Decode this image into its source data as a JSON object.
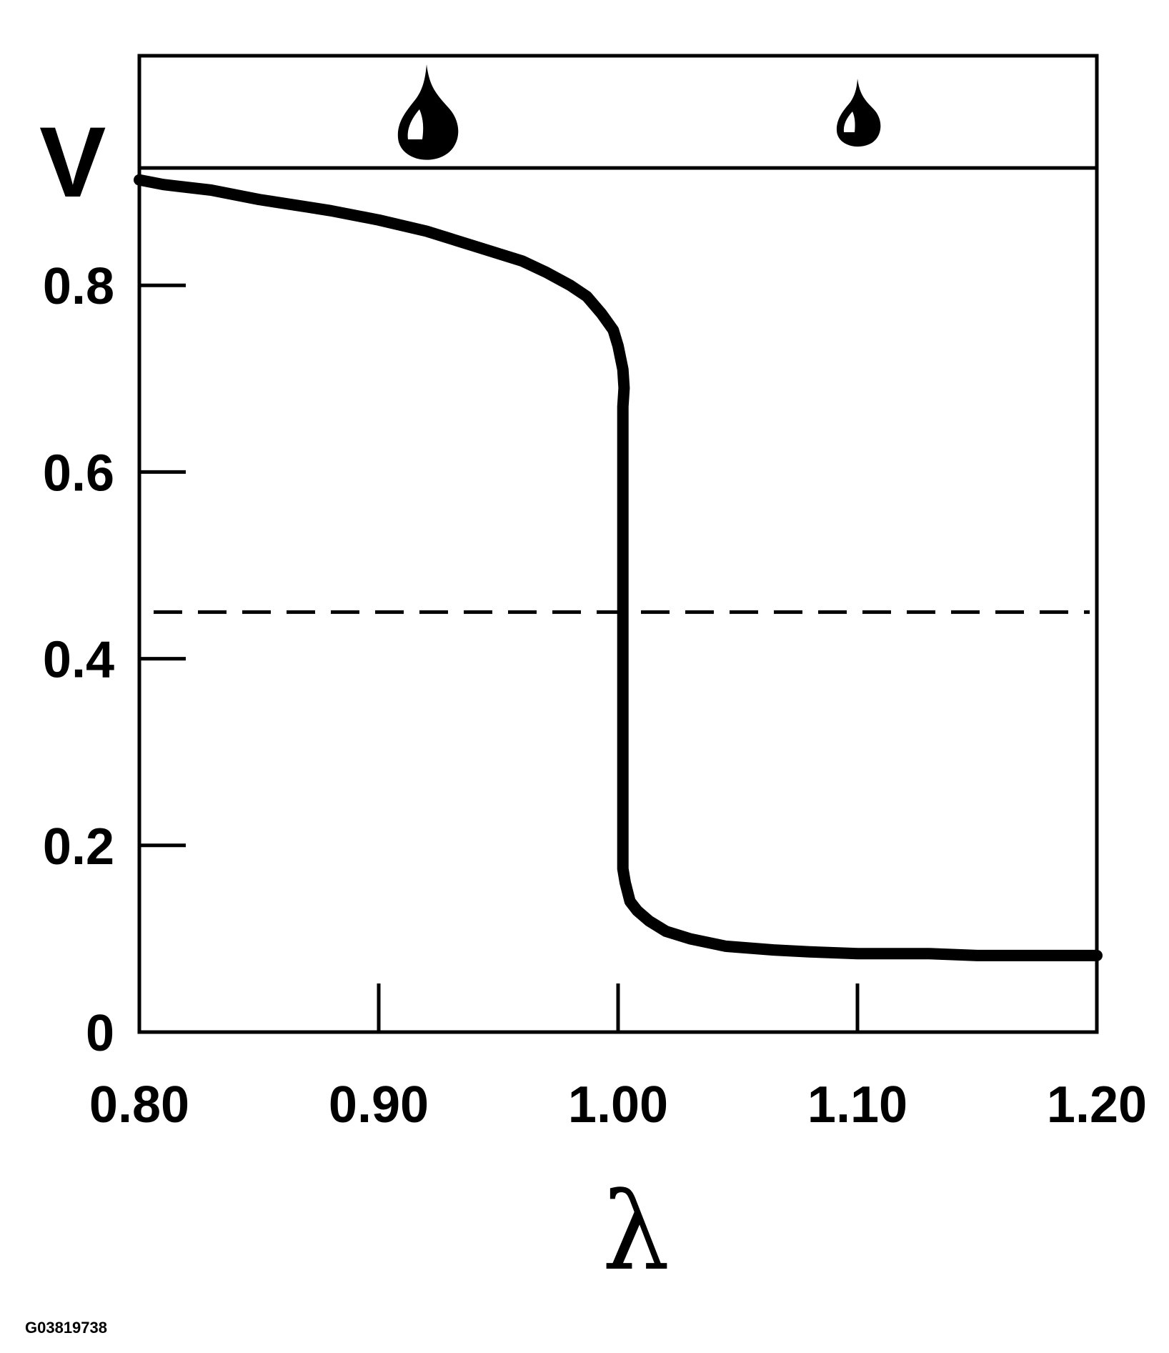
{
  "chart_data": {
    "type": "line",
    "title": "",
    "xlabel": "λ",
    "ylabel": "V",
    "xlim": [
      0.8,
      1.2
    ],
    "ylim": [
      0,
      0.925
    ],
    "x_ticks": [
      0.8,
      0.9,
      1.0,
      1.1,
      1.2
    ],
    "x_tick_labels": [
      "0.80",
      "0.90",
      "1.00",
      "1.10",
      "1.20"
    ],
    "y_ticks": [
      0,
      0.2,
      0.4,
      0.6,
      0.8
    ],
    "y_tick_labels": [
      "0",
      "0.2",
      "0.4",
      "0.6",
      "0.8"
    ],
    "grid": false,
    "series": [
      {
        "points": [
          [
            0.8,
            0.913
          ],
          [
            0.81,
            0.908
          ],
          [
            0.83,
            0.902
          ],
          [
            0.85,
            0.892
          ],
          [
            0.87,
            0.884
          ],
          [
            0.88,
            0.88
          ],
          [
            0.9,
            0.87
          ],
          [
            0.92,
            0.858
          ],
          [
            0.94,
            0.842
          ],
          [
            0.96,
            0.826
          ],
          [
            0.97,
            0.814
          ],
          [
            0.98,
            0.8
          ],
          [
            0.987,
            0.788
          ],
          [
            0.993,
            0.77
          ],
          [
            0.998,
            0.752
          ],
          [
            1.0,
            0.735
          ],
          [
            1.002,
            0.71
          ],
          [
            1.0025,
            0.69
          ],
          [
            1.002,
            0.67
          ],
          [
            1.002,
            0.6
          ],
          [
            1.002,
            0.5
          ],
          [
            1.002,
            0.4
          ],
          [
            1.002,
            0.3
          ],
          [
            1.002,
            0.2
          ],
          [
            1.002,
            0.175
          ],
          [
            1.003,
            0.16
          ],
          [
            1.005,
            0.14
          ],
          [
            1.008,
            0.13
          ],
          [
            1.013,
            0.119
          ],
          [
            1.02,
            0.108
          ],
          [
            1.03,
            0.1
          ],
          [
            1.045,
            0.092
          ],
          [
            1.065,
            0.088
          ],
          [
            1.08,
            0.086
          ],
          [
            1.1,
            0.084
          ],
          [
            1.13,
            0.084
          ],
          [
            1.15,
            0.082
          ],
          [
            1.18,
            0.082
          ],
          [
            1.2,
            0.082
          ]
        ]
      }
    ],
    "reference_lines": [
      {
        "orientation": "horizontal",
        "y": 0.45,
        "style": "dashed"
      }
    ],
    "annotations": [
      {
        "kind": "droplet-icon",
        "x": 0.92,
        "size": "large"
      },
      {
        "kind": "droplet-icon",
        "x": 1.1,
        "size": "small"
      }
    ]
  },
  "figure_id": "G03819738",
  "colors": {
    "ink": "#000000",
    "background": "#ffffff"
  }
}
